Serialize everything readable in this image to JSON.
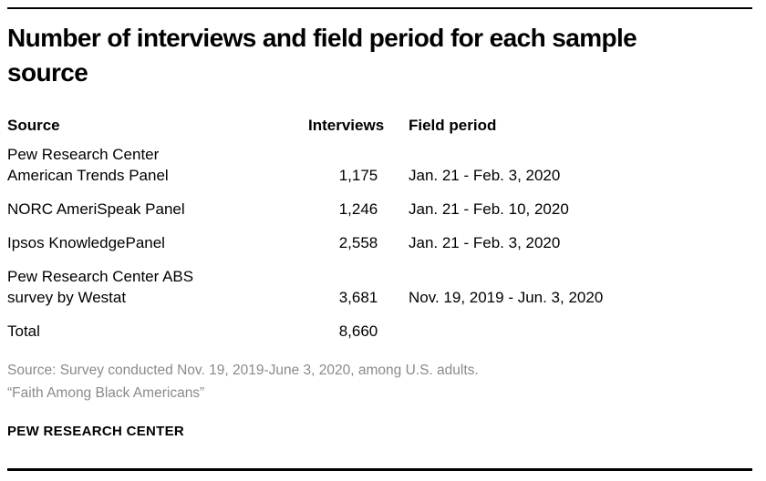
{
  "colors": {
    "rule": "#000000",
    "text": "#000000",
    "note_gray": "#8a8a8a"
  },
  "title": "Number of interviews and field period for each sample\nsource",
  "table": {
    "headers": {
      "source": "Source",
      "interviews": "Interviews",
      "period": "Field period"
    },
    "rows": [
      {
        "source": "Pew Research Center\nAmerican Trends Panel",
        "interviews": "1,175",
        "period": "Jan. 21 - Feb. 3, 2020"
      },
      {
        "source": "NORC AmeriSpeak Panel",
        "interviews": "1,246",
        "period": "Jan. 21 - Feb. 10, 2020"
      },
      {
        "source": "Ipsos KnowledgePanel",
        "interviews": "2,558",
        "period": "Jan. 21 - Feb. 3, 2020"
      },
      {
        "source": "Pew Research Center ABS\nsurvey by Westat",
        "interviews": "3,681",
        "period": "Nov. 19, 2019 - Jun. 3, 2020"
      },
      {
        "source": "Total",
        "interviews": "8,660",
        "period": ""
      }
    ]
  },
  "notes": {
    "source": "Source: Survey conducted Nov. 19, 2019-June 3, 2020, among U.S. adults.",
    "citation": "“Faith Among Black Americans”"
  },
  "branding": "PEW RESEARCH CENTER",
  "chart_data": {
    "type": "table",
    "title": "Number of interviews and field period for each sample source",
    "columns": [
      "Source",
      "Interviews",
      "Field period"
    ],
    "rows": [
      [
        "Pew Research Center American Trends Panel",
        "1,175",
        "Jan. 21 - Feb. 3, 2020"
      ],
      [
        "NORC AmeriSpeak Panel",
        "1,246",
        "Jan. 21 - Feb. 10, 2020"
      ],
      [
        "Ipsos KnowledgePanel",
        "2,558",
        "Jan. 21 - Feb. 3, 2020"
      ],
      [
        "Pew Research Center ABS survey by Westat",
        "3,681",
        "Nov. 19, 2019 - Jun. 3, 2020"
      ],
      [
        "Total",
        "8,660",
        ""
      ]
    ],
    "source_note": "Source: Survey conducted Nov. 19, 2019-June 3, 2020, among U.S. adults.",
    "citation": "“Faith Among Black Americans”",
    "branding": "PEW RESEARCH CENTER"
  }
}
